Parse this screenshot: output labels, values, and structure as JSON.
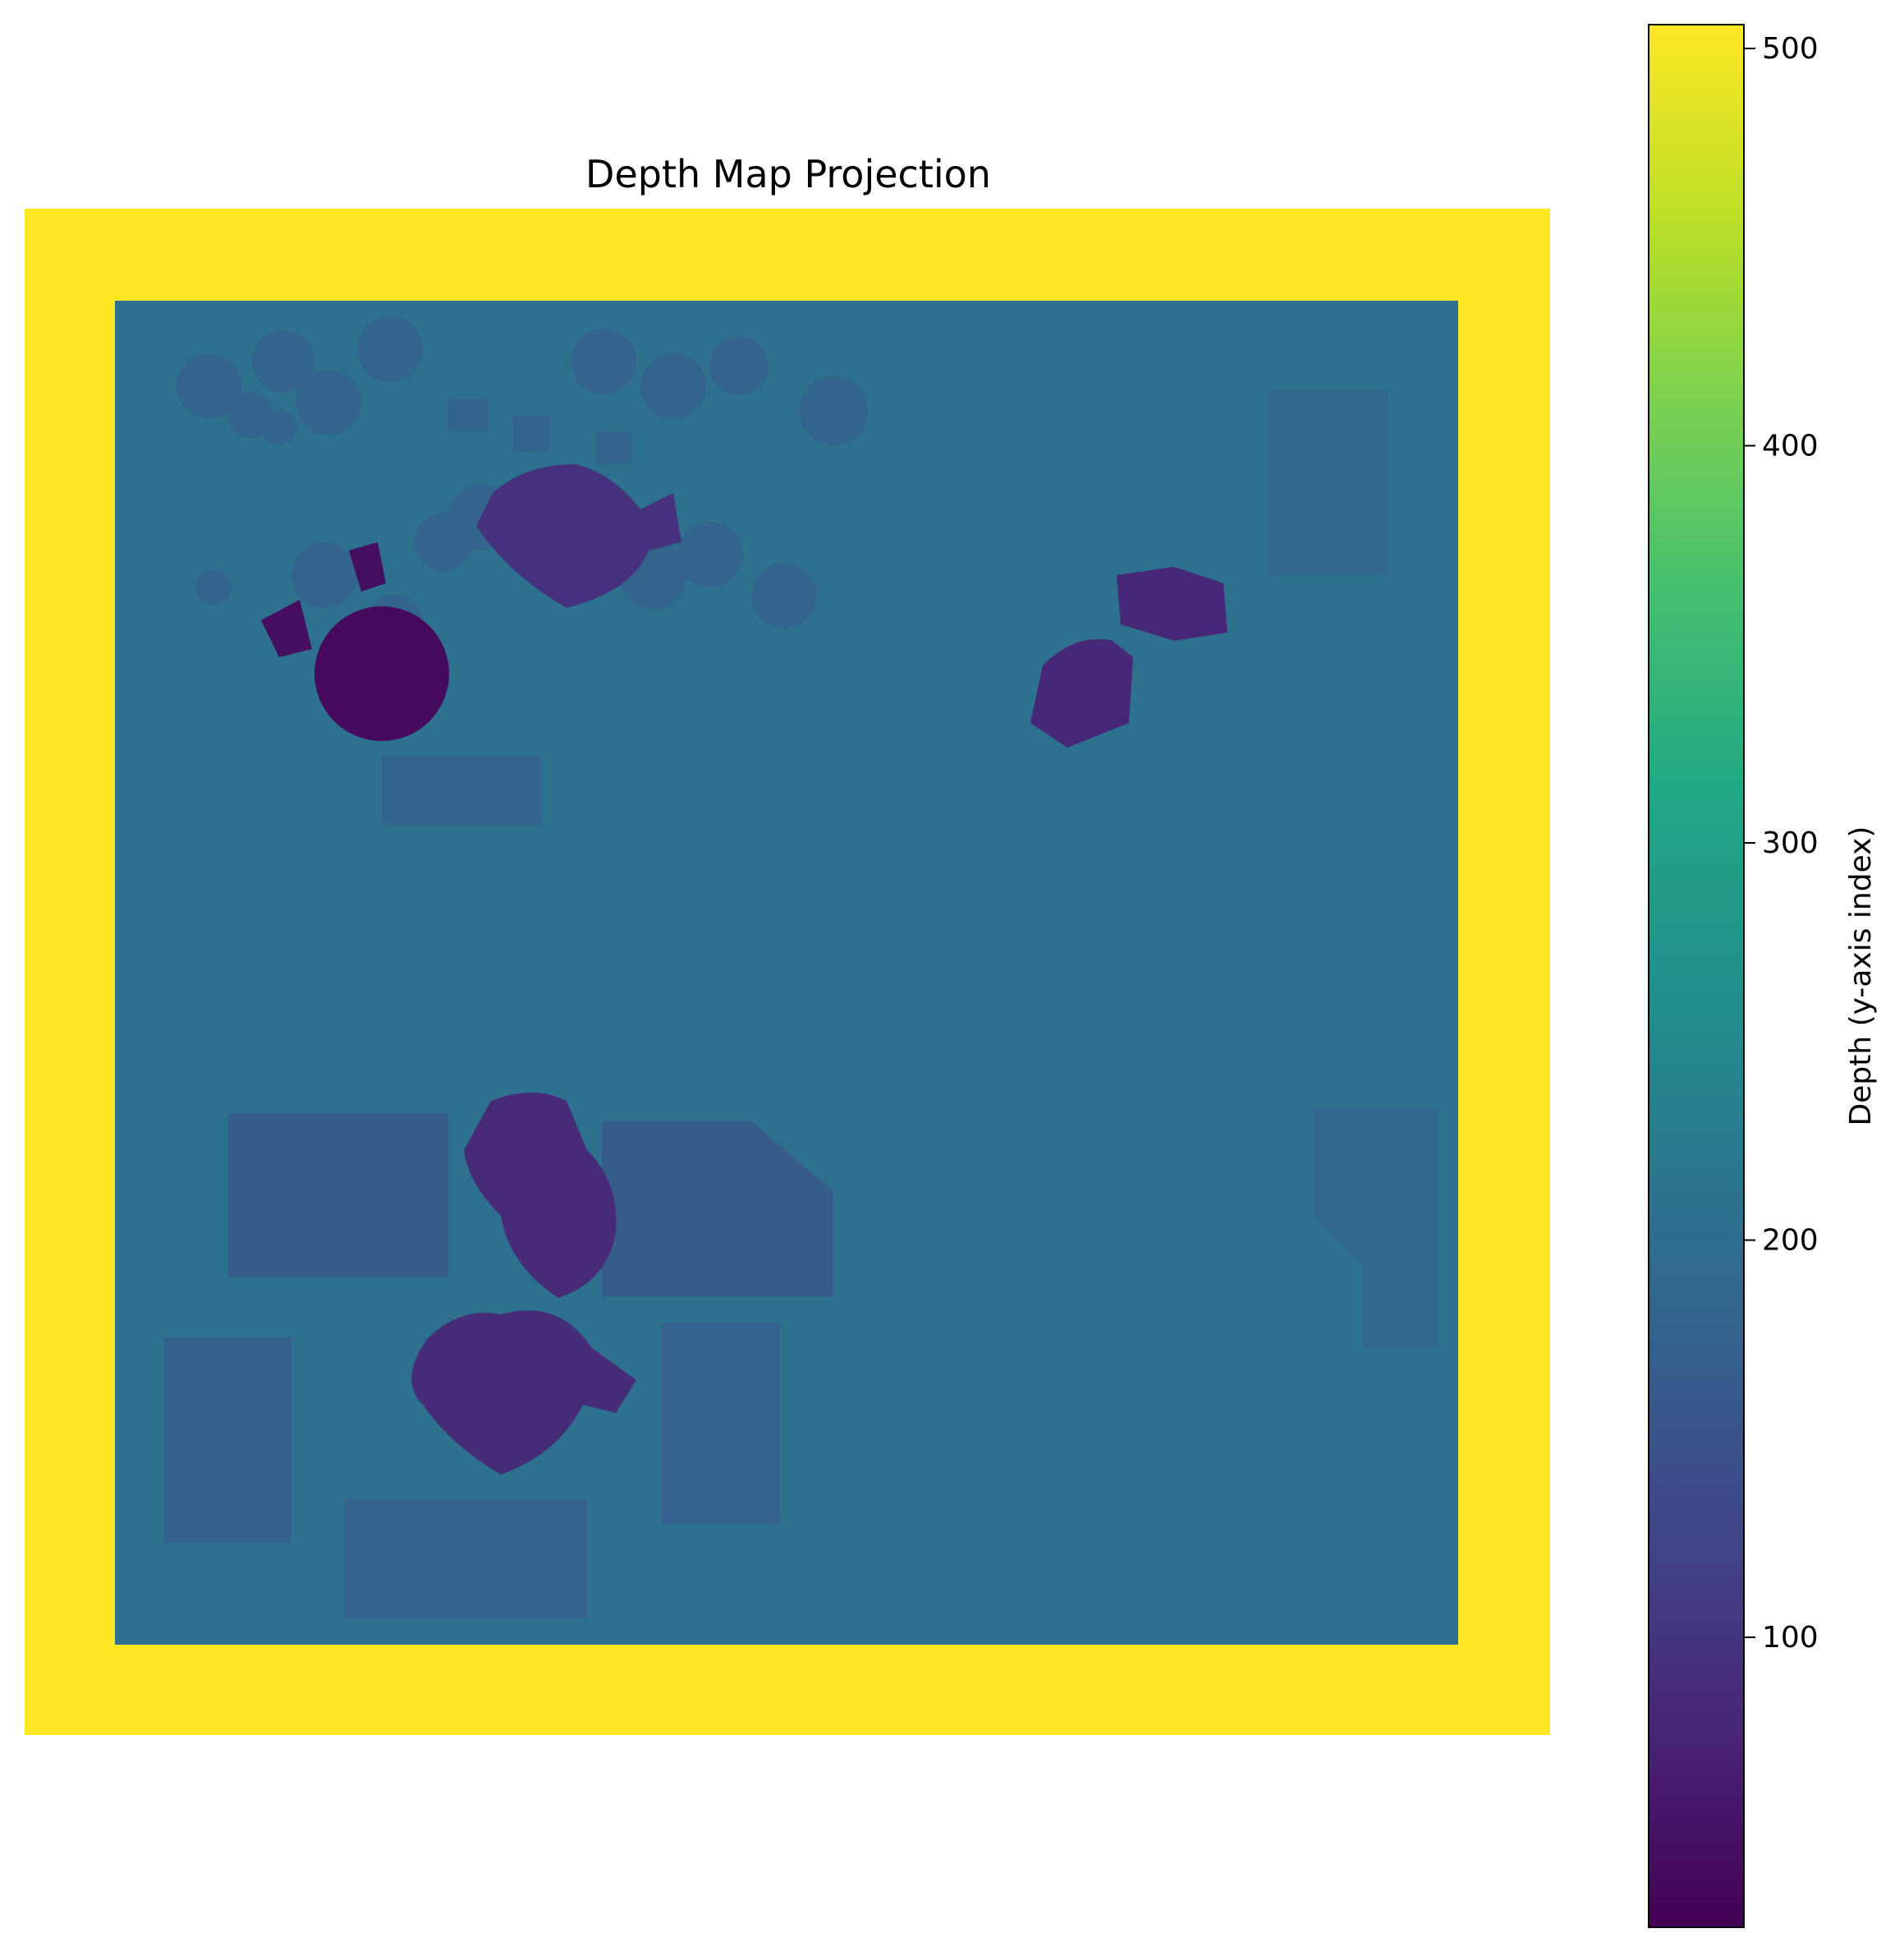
{
  "chart_data": {
    "type": "heatmap",
    "title": "Depth Map Projection",
    "colormap": "viridis",
    "colorbar": {
      "label": "Depth (y-axis index)",
      "range": [
        27,
        506
      ],
      "ticks": [
        100,
        200,
        300,
        400,
        500
      ]
    },
    "axes_visible": false,
    "grid": false,
    "background_value": 506,
    "floor_value": 205,
    "regions": [
      {
        "name": "tree-cluster-top",
        "value": 180
      },
      {
        "name": "obstacle-large-top",
        "value": 95
      },
      {
        "name": "obstacle-round-left",
        "value": 40
      },
      {
        "name": "obstacle-small-left",
        "value": 45
      },
      {
        "name": "obstacle-right-upper",
        "value": 80
      },
      {
        "name": "obstacle-right-mid",
        "value": 80
      },
      {
        "name": "building-right-upper",
        "value": 185
      },
      {
        "name": "building-left-mid",
        "value": 180
      },
      {
        "name": "building-center-bottom",
        "value": 165
      },
      {
        "name": "building-left-bottom",
        "value": 170
      },
      {
        "name": "building-center-bottom-2",
        "value": 175
      },
      {
        "name": "building-bottom-row",
        "value": 178
      },
      {
        "name": "building-right-lower",
        "value": 185
      },
      {
        "name": "obstacle-tall-bottom",
        "value": 85
      },
      {
        "name": "obstacle-round-bottom",
        "value": 88
      }
    ]
  }
}
